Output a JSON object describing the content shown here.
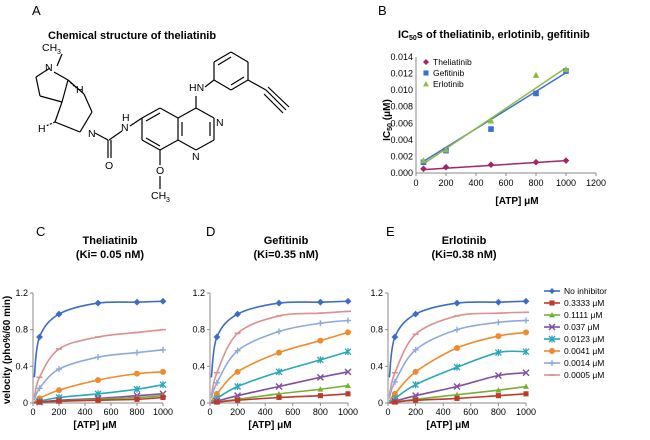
{
  "panels": {
    "A": {
      "label": "A",
      "title": "Chemical structure of theliatinib",
      "atoms": {
        "ch3_top": "CH",
        "ch3_top_sub": "3",
        "n_ring": "N",
        "h_top": "H",
        "h_bottom": "H",
        "n_amide": "N",
        "n_amide_h": "H",
        "o_carbonyl": "O",
        "hn_aniline": "HN",
        "n_quin1": "N",
        "n_quin2": "N",
        "o_methoxy": "O",
        "ch3_methoxy": "CH",
        "ch3_methoxy_sub": "3"
      }
    },
    "B": {
      "label": "B"
    },
    "C": {
      "label": "C"
    },
    "D": {
      "label": "D"
    },
    "E": {
      "label": "E"
    }
  },
  "chart_data": [
    {
      "id": "B",
      "type": "scatter",
      "title_prefix": "IC",
      "title_sub": "50",
      "title_suffix": "s of theliatinib, erlotinib, gefitinib",
      "xlabel": "[ATP] μM",
      "ylabel_prefix": "IC",
      "ylabel_sub": "50",
      "ylabel_suffix": " (μM)",
      "xlim": [
        0,
        1200
      ],
      "ylim": [
        0,
        0.014
      ],
      "xticks": [
        "0",
        "200",
        "400",
        "600",
        "800",
        "1000",
        "1200"
      ],
      "yticks": [
        "0.000",
        "0.002",
        "0.004",
        "0.006",
        "0.008",
        "0.010",
        "0.012",
        "0.014"
      ],
      "legend": "top-left",
      "series": [
        {
          "name": "Theliatinib",
          "color": "#a3246b",
          "marker": "diamond",
          "x": [
            50,
            200,
            500,
            800,
            1000
          ],
          "y": [
            0.0005,
            0.0007,
            0.001,
            0.0013,
            0.0015
          ],
          "fit": [
            [
              50,
              0.0004
            ],
            [
              1000,
              0.0015
            ]
          ]
        },
        {
          "name": "Gefitinib",
          "color": "#3b6fd8",
          "marker": "square",
          "x": [
            50,
            200,
            500,
            800,
            1000
          ],
          "y": [
            0.0013,
            0.0027,
            0.0053,
            0.0096,
            0.0123
          ],
          "fit": [
            [
              50,
              0.0014
            ],
            [
              1000,
              0.0121
            ]
          ]
        },
        {
          "name": "Erlotinib",
          "color": "#8dbb46",
          "marker": "triangle",
          "x": [
            50,
            200,
            500,
            800,
            1000
          ],
          "y": [
            0.0015,
            0.0028,
            0.0063,
            0.0118,
            0.0125
          ],
          "fit": [
            [
              50,
              0.0011
            ],
            [
              1000,
              0.0127
            ]
          ]
        }
      ]
    },
    {
      "id": "C",
      "type": "line",
      "title": "Theliatinib",
      "subtitle": "(Ki= 0.05 nM)",
      "xlabel": "[ATP] μM",
      "ylabel": "velocity (pho%/60 min)",
      "xlim": [
        0,
        1000
      ],
      "ylim": [
        0,
        1.2
      ],
      "xticks": [
        "0",
        "200",
        "400",
        "600",
        "800",
        "1000"
      ],
      "yticks": [
        "0",
        "0.4",
        "0.8",
        "1.2"
      ],
      "x": [
        10,
        50,
        200,
        500,
        800,
        1000
      ],
      "series": [
        {
          "name": "No inhibitor",
          "values": [
            0.28,
            0.72,
            0.97,
            1.09,
            1.1,
            1.11
          ]
        },
        {
          "name": "0.3333 μM",
          "values": [
            0.0,
            0.01,
            0.02,
            0.03,
            0.04,
            0.06
          ]
        },
        {
          "name": "0.1111 μM",
          "values": [
            0.0,
            0.01,
            0.02,
            0.04,
            0.06,
            0.08
          ]
        },
        {
          "name": "0.037 μM",
          "values": [
            0.0,
            0.01,
            0.03,
            0.05,
            0.08,
            0.1
          ]
        },
        {
          "name": "0.0123 μM",
          "values": [
            0.0,
            0.02,
            0.06,
            0.1,
            0.15,
            0.2
          ]
        },
        {
          "name": "0.0041 μM",
          "values": [
            0.01,
            0.05,
            0.14,
            0.25,
            0.32,
            0.34
          ]
        },
        {
          "name": "0.0014 μM",
          "values": [
            0.03,
            0.16,
            0.37,
            0.5,
            0.55,
            0.58
          ]
        },
        {
          "name": "0.0005 μM",
          "values": [
            0.06,
            0.28,
            0.59,
            0.72,
            0.77,
            0.8
          ]
        }
      ]
    },
    {
      "id": "D",
      "type": "line",
      "title": "Gefitinib",
      "subtitle": "(Ki=0.35 nM)",
      "xlabel": "[ATP] μM",
      "xlim": [
        0,
        1000
      ],
      "ylim": [
        0,
        1.2
      ],
      "xticks": [
        "0",
        "200",
        "400",
        "600",
        "800",
        "1000"
      ],
      "yticks": [
        "0",
        "0.4",
        "0.8",
        "1.2"
      ],
      "x": [
        10,
        50,
        200,
        500,
        800,
        1000
      ],
      "series": [
        {
          "name": "No inhibitor",
          "values": [
            0.28,
            0.72,
            0.97,
            1.09,
            1.1,
            1.11
          ]
        },
        {
          "name": "0.3333 μM",
          "values": [
            0.0,
            0.01,
            0.03,
            0.06,
            0.08,
            0.1
          ]
        },
        {
          "name": "0.1111 μM",
          "values": [
            0.0,
            0.01,
            0.04,
            0.1,
            0.15,
            0.19
          ]
        },
        {
          "name": "0.037 μM",
          "values": [
            0.0,
            0.02,
            0.08,
            0.18,
            0.28,
            0.34
          ]
        },
        {
          "name": "0.0123 μM",
          "values": [
            0.01,
            0.05,
            0.18,
            0.34,
            0.47,
            0.56
          ]
        },
        {
          "name": "0.0041 μM",
          "values": [
            0.02,
            0.1,
            0.34,
            0.55,
            0.68,
            0.77
          ]
        },
        {
          "name": "0.0014 μM",
          "values": [
            0.05,
            0.22,
            0.57,
            0.78,
            0.87,
            0.9
          ]
        },
        {
          "name": "0.0005 μM",
          "values": [
            0.08,
            0.33,
            0.76,
            0.95,
            0.98,
            1.0
          ]
        }
      ]
    },
    {
      "id": "E",
      "type": "line",
      "title": "Erlotinib",
      "subtitle": "(Ki=0.38 nM)",
      "xlabel": "[ATP] μM",
      "xlim": [
        0,
        1000
      ],
      "ylim": [
        0,
        1.2
      ],
      "xticks": [
        "0",
        "200",
        "400",
        "600",
        "800",
        "1000"
      ],
      "yticks": [
        "0",
        "0.4",
        "0.8",
        "1.2"
      ],
      "x": [
        10,
        50,
        200,
        500,
        800,
        1000
      ],
      "series": [
        {
          "name": "No inhibitor",
          "values": [
            0.28,
            0.72,
            0.97,
            1.09,
            1.1,
            1.11
          ]
        },
        {
          "name": "0.3333 μM",
          "values": [
            0.0,
            0.01,
            0.03,
            0.05,
            0.08,
            0.1
          ]
        },
        {
          "name": "0.1111 μM",
          "values": [
            0.0,
            0.01,
            0.04,
            0.09,
            0.14,
            0.18
          ]
        },
        {
          "name": "0.037 μM",
          "values": [
            0.0,
            0.02,
            0.08,
            0.18,
            0.3,
            0.33
          ]
        },
        {
          "name": "0.0123 μM",
          "values": [
            0.01,
            0.05,
            0.2,
            0.39,
            0.55,
            0.56
          ]
        },
        {
          "name": "0.0041 μM",
          "values": [
            0.02,
            0.1,
            0.34,
            0.6,
            0.73,
            0.77
          ]
        },
        {
          "name": "0.0014 μM",
          "values": [
            0.05,
            0.23,
            0.58,
            0.8,
            0.88,
            0.9
          ]
        },
        {
          "name": "0.0005 μM",
          "values": [
            0.08,
            0.33,
            0.75,
            0.95,
            0.98,
            0.99
          ]
        }
      ]
    }
  ],
  "legend_kinetics": {
    "entries": [
      {
        "name": "No inhibitor",
        "color": "#3b6cc7",
        "marker": "diamond"
      },
      {
        "name": "0.3333 μM",
        "color": "#c0392b",
        "marker": "square"
      },
      {
        "name": "0.1111 μM",
        "color": "#76b031",
        "marker": "triangle"
      },
      {
        "name": "0.037 μM",
        "color": "#7e4fa3",
        "marker": "x"
      },
      {
        "name": "0.0123 μM",
        "color": "#2aa7b8",
        "marker": "star"
      },
      {
        "name": "0.0041 μM",
        "color": "#ef8b2c",
        "marker": "circle"
      },
      {
        "name": "0.0014 μM",
        "color": "#8ea9dd",
        "marker": "plus"
      },
      {
        "name": "0.0005 μM",
        "color": "#de8f8f",
        "marker": "dash"
      }
    ]
  }
}
